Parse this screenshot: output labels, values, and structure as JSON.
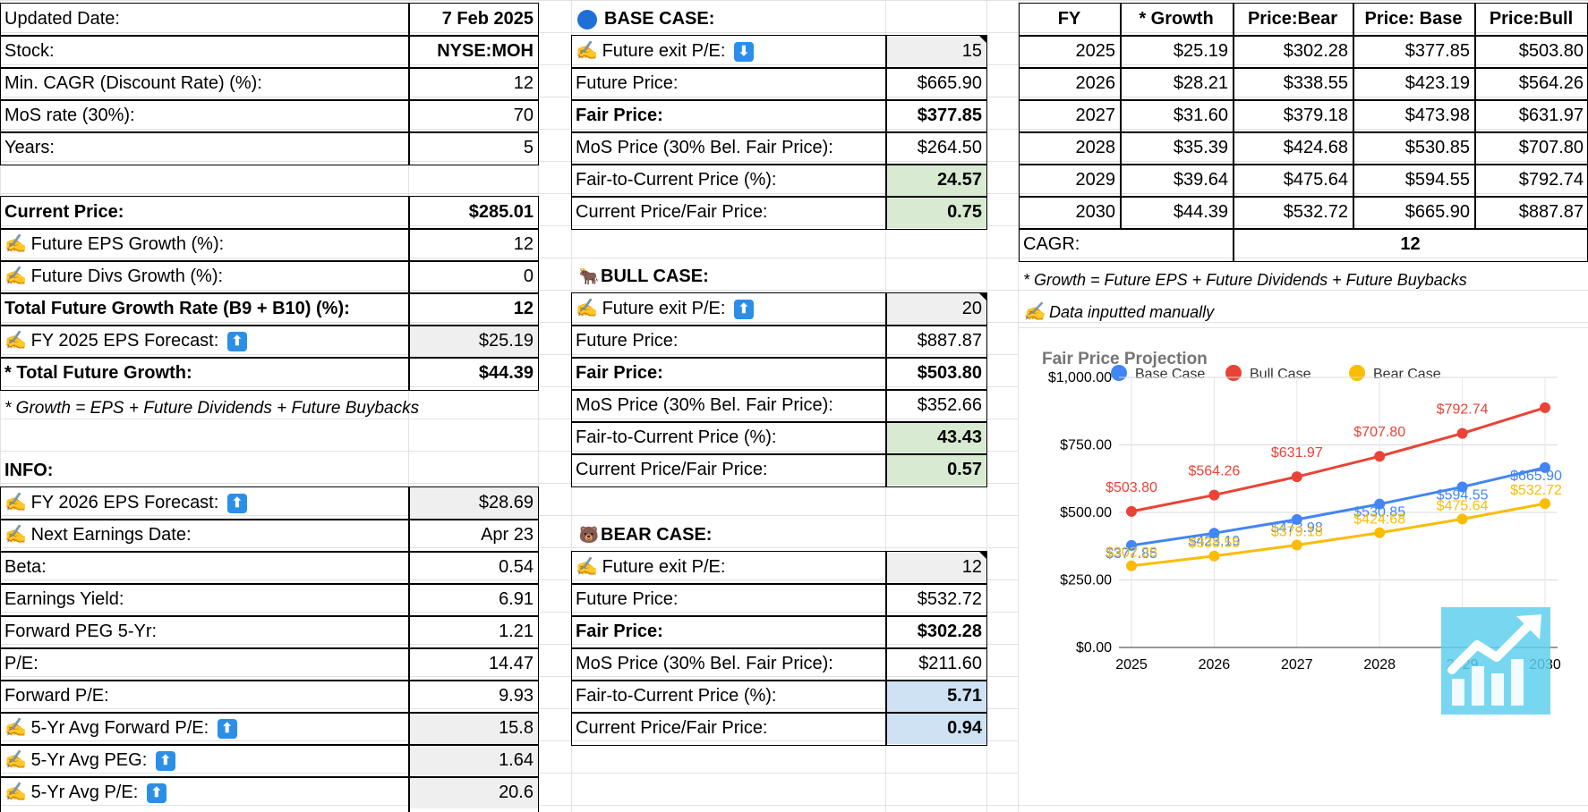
{
  "left": {
    "rows": [
      {
        "label": "Updated Date:",
        "value": "7 Feb 2025",
        "lb": false,
        "vb": true
      },
      {
        "label": "Stock:",
        "value": "NYSE:MOH",
        "lb": false,
        "vb": true
      },
      {
        "label": "Min. CAGR (Discount Rate) (%):",
        "value": "12"
      },
      {
        "label": "MoS rate (30%):",
        "value": "70"
      },
      {
        "label": "Years:",
        "value": "5"
      },
      {
        "label": "Current Price:",
        "value": "$285.01"
      },
      {
        "label": "Future EPS Growth (%):",
        "value": "12"
      },
      {
        "label": "Future Divs Growth (%):",
        "value": "0"
      },
      {
        "label": "Total Future Growth Rate (B9 + B10) (%):",
        "value": "12"
      },
      {
        "label": "FY 2025 EPS Forecast:",
        "value": "$25.19"
      },
      {
        "label": "* Total Future Growth:",
        "value": "$44.39"
      }
    ],
    "footnote": "* Growth = EPS + Future Dividends + Future Buybacks",
    "info_title": "INFO:",
    "info_rows": [
      {
        "label": "FY 2026 EPS Forecast:",
        "value": "$28.69"
      },
      {
        "label": "Next Earnings Date:",
        "value": "Apr 23"
      },
      {
        "label": "Beta:",
        "value": "0.54"
      },
      {
        "label": "Earnings Yield:",
        "value": "6.91"
      },
      {
        "label": "Forward PEG 5-Yr:",
        "value": "1.21"
      },
      {
        "label": "P/E:",
        "value": "14.47"
      },
      {
        "label": "Forward P/E:",
        "value": "9.93"
      },
      {
        "label": "5-Yr Avg Forward P/E:",
        "value": "15.8"
      },
      {
        "label": "5-Yr Avg PEG:",
        "value": "1.64"
      },
      {
        "label": "5-Yr Avg P/E:",
        "value": "20.6"
      }
    ]
  },
  "cases": {
    "base": {
      "title": "BASE CASE:",
      "rows": [
        {
          "label": "Future exit P/E:",
          "value": "15"
        },
        {
          "label": "Future Price:",
          "value": "$665.90"
        },
        {
          "label": "Fair Price:",
          "value": "$377.85"
        },
        {
          "label": "MoS Price (30% Bel. Fair Price):",
          "value": "$264.50"
        },
        {
          "label": "Fair-to-Current Price (%):",
          "value": "24.57"
        },
        {
          "label": "Current Price/Fair Price:",
          "value": "0.75"
        }
      ]
    },
    "bull": {
      "title": "BULL CASE:",
      "rows": [
        {
          "label": "Future exit P/E:",
          "value": "20"
        },
        {
          "label": "Future Price:",
          "value": "$887.87"
        },
        {
          "label": "Fair Price:",
          "value": "$503.80"
        },
        {
          "label": "MoS Price (30% Bel. Fair Price):",
          "value": "$352.66"
        },
        {
          "label": "Fair-to-Current Price (%):",
          "value": "43.43"
        },
        {
          "label": "Current Price/Fair Price:",
          "value": "0.57"
        }
      ]
    },
    "bear": {
      "title": "BEAR CASE:",
      "rows": [
        {
          "label": "Future exit P/E:",
          "value": "12"
        },
        {
          "label": "Future Price:",
          "value": "$532.72"
        },
        {
          "label": "Fair Price:",
          "value": "$302.28"
        },
        {
          "label": "MoS Price (30% Bel. Fair Price):",
          "value": "$211.60"
        },
        {
          "label": "Fair-to-Current Price (%):",
          "value": "5.71"
        },
        {
          "label": "Current Price/Fair Price:",
          "value": "0.94"
        }
      ]
    }
  },
  "table": {
    "headers": [
      "FY",
      "* Growth",
      "Price:Bear",
      "Price: Base",
      "Price:Bull"
    ],
    "rows": [
      [
        "2025",
        "$25.19",
        "$302.28",
        "$377.85",
        "$503.80"
      ],
      [
        "2026",
        "$28.21",
        "$338.55",
        "$423.19",
        "$564.26"
      ],
      [
        "2027",
        "$31.60",
        "$379.18",
        "$473.98",
        "$631.97"
      ],
      [
        "2028",
        "$35.39",
        "$424.68",
        "$530.85",
        "$707.80"
      ],
      [
        "2029",
        "$39.64",
        "$475.64",
        "$594.55",
        "$792.74"
      ],
      [
        "2030",
        "$44.39",
        "$532.72",
        "$665.90",
        "$887.87"
      ]
    ],
    "cagr_label": "CAGR:",
    "cagr_value": "12",
    "note1": "* Growth = Future EPS + Future Dividends + Future Buybacks",
    "note2": "Data inputted manually"
  },
  "icons": {
    "pen": "writing-hand-icon",
    "up": "up-arrow-icon",
    "down": "down-arrow-icon",
    "bull": "ox-icon",
    "bear": "bear-icon",
    "chart": "chart-increasing-icon"
  },
  "colors": {
    "green": "#d9ead3",
    "blue": "#cfe2f3",
    "gray": "#efefef",
    "base": "#4285f4",
    "bull": "#ea4335",
    "bear": "#fbbc04"
  },
  "chart_data": {
    "type": "line",
    "title": "Fair Price Projection",
    "categories": [
      "2025",
      "2026",
      "2027",
      "2028",
      "2029",
      "2030"
    ],
    "series": [
      {
        "name": "Base Case",
        "color": "#4285f4",
        "values": [
          377.85,
          423.19,
          473.98,
          530.85,
          594.55,
          665.9
        ],
        "labels": [
          "$377.85",
          "$423.19",
          "$473.98",
          "$530.85",
          "$594.55",
          "$665.90"
        ]
      },
      {
        "name": "Bull Case",
        "color": "#ea4335",
        "values": [
          503.8,
          564.26,
          631.97,
          707.8,
          792.74,
          887.87
        ],
        "labels": [
          "$503.80",
          "$564.26",
          "$631.97",
          "$707.80",
          "$792.74",
          ""
        ]
      },
      {
        "name": "Bear Case",
        "color": "#fbbc04",
        "values": [
          302.28,
          338.55,
          379.18,
          424.68,
          475.64,
          532.72
        ],
        "labels": [
          "$302.28",
          "$338.55",
          "$379.18",
          "$424.68",
          "$475.64",
          "$532.72"
        ]
      }
    ],
    "yticks": [
      "$0.00",
      "$250.00",
      "$500.00",
      "$750.00",
      "$1,000.00"
    ],
    "ylim": [
      0,
      1000
    ],
    "legend": "top",
    "grid": true
  }
}
